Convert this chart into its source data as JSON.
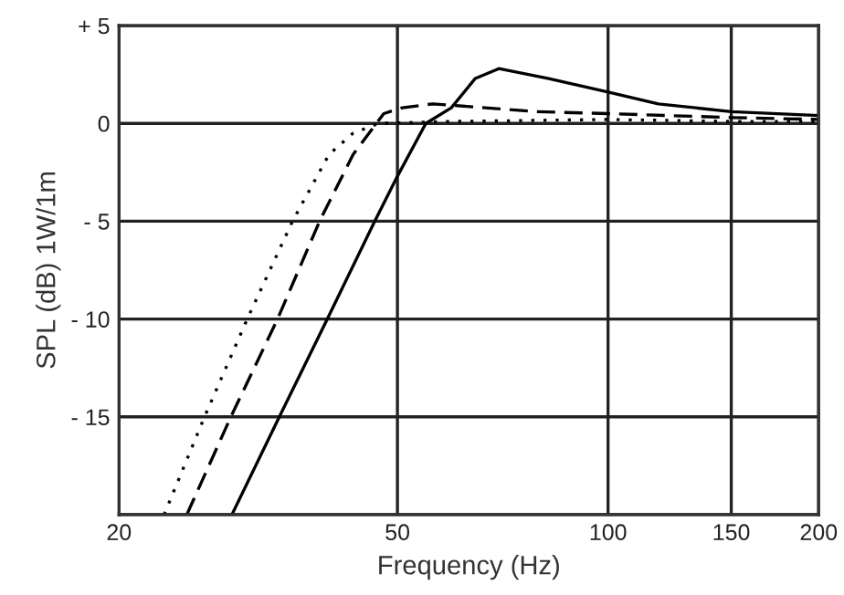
{
  "chart_data": {
    "type": "line",
    "xlabel": "Frequency (Hz)",
    "ylabel": "SPL (dB) 1W/1m",
    "log": "x",
    "xlim": [
      20,
      200
    ],
    "xticks": [
      20,
      50,
      100,
      150,
      200
    ],
    "ylim": [
      -20,
      5
    ],
    "yticks": [
      {
        "value": 5,
        "label": "+ 5"
      },
      0,
      {
        "value": -5,
        "label": "- 5"
      },
      {
        "value": -10,
        "label": "- 10"
      },
      {
        "value": -15,
        "label": "- 15"
      },
      {
        "value": -20,
        "label": null
      }
    ],
    "grid": true,
    "series": [
      {
        "color": "#000000",
        "line_style": "solid",
        "x": [
          29.0,
          33.9,
          39.7,
          46.4,
          50,
          54.9,
          59.7,
          64.6,
          69.8,
          82,
          100,
          118,
          150,
          200
        ],
        "values": [
          -20,
          -15,
          -10,
          -5,
          -2.7,
          0,
          0.8,
          2.3,
          2.8,
          2.3,
          1.6,
          1.0,
          0.6,
          0.4
        ]
      },
      {
        "color": "#000000",
        "line_style": "dashed",
        "x": [
          25.0,
          28.9,
          33.7,
          38.7,
          43.2,
          47.8,
          50.8,
          56.2,
          78.8,
          100,
          150,
          200
        ],
        "values": [
          -20,
          -15,
          -10,
          -5,
          -1.6,
          0.5,
          0.8,
          1.0,
          0.6,
          0.5,
          0.3,
          0.2
        ]
      },
      {
        "color": "#000000",
        "line_style": "dotted",
        "x": [
          23.2,
          26.5,
          30.5,
          35.4,
          39.9,
          43.2,
          47.0,
          60,
          100,
          150,
          200
        ],
        "values": [
          -20,
          -15,
          -10,
          -5,
          -1.6,
          -0.5,
          0,
          0.1,
          0.2,
          0.1,
          0.1
        ]
      }
    ]
  }
}
